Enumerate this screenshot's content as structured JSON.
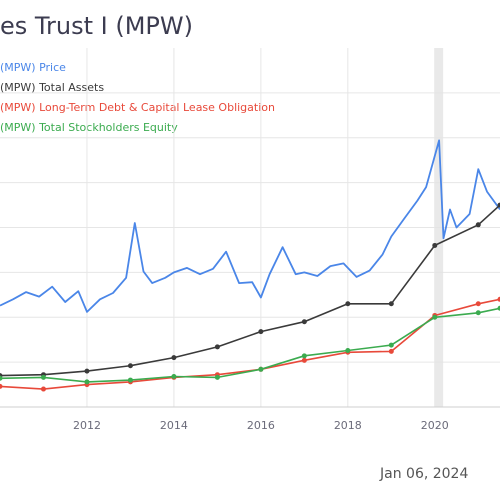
{
  "chart_data": {
    "type": "line",
    "title": "es Trust I (MPW)",
    "date_text": "Jan 06, 2024",
    "x_ticks": [
      "2012",
      "2014",
      "2016",
      "2018",
      "2020"
    ],
    "xlim": [
      2010,
      2021.5
    ],
    "ylim": [
      0,
      40
    ],
    "grid": true,
    "legend_position": "top-left",
    "highlight_band": 2020.1,
    "series": [
      {
        "name": "(MPW) Price",
        "color": "#4a86e8",
        "x": [
          2010.0,
          2010.3,
          2010.6,
          2010.9,
          2011.2,
          2011.5,
          2011.8,
          2012.0,
          2012.3,
          2012.6,
          2012.9,
          2013.1,
          2013.3,
          2013.5,
          2013.8,
          2014.0,
          2014.3,
          2014.6,
          2014.9,
          2015.2,
          2015.5,
          2015.8,
          2016.0,
          2016.2,
          2016.5,
          2016.8,
          2017.0,
          2017.3,
          2017.6,
          2017.9,
          2018.2,
          2018.5,
          2018.8,
          2019.0,
          2019.3,
          2019.6,
          2019.8,
          2020.1,
          2020.2,
          2020.35,
          2020.5,
          2020.8,
          2021.0,
          2021.2,
          2021.5
        ],
        "values": [
          11.3,
          12.0,
          12.8,
          12.3,
          13.4,
          11.7,
          12.9,
          10.6,
          12.0,
          12.7,
          14.4,
          20.5,
          15.1,
          13.8,
          14.4,
          15.0,
          15.5,
          14.8,
          15.4,
          17.3,
          13.8,
          13.9,
          12.2,
          14.8,
          17.8,
          14.8,
          15.0,
          14.6,
          15.7,
          16.0,
          14.5,
          15.2,
          17.0,
          19.0,
          21.0,
          23.0,
          24.5,
          29.7,
          18.8,
          22.0,
          20.0,
          21.5,
          26.5,
          24.0,
          22.0
        ]
      },
      {
        "name": "(MPW) Total Assets",
        "color": "#3a3a3a",
        "x": [
          2010.0,
          2011.0,
          2012.0,
          2013.0,
          2014.0,
          2015.0,
          2016.0,
          2017.0,
          2018.0,
          2019.0,
          2020.0,
          2021.0,
          2021.5
        ],
        "values": [
          3.5,
          3.6,
          4.0,
          4.6,
          5.5,
          6.7,
          8.4,
          9.5,
          11.5,
          11.5,
          18.0,
          20.3,
          22.5
        ]
      },
      {
        "name": "(MPW) Long-Term Debt & Capital Lease Obligation",
        "color": "#e8493a",
        "x": [
          2010.0,
          2011.0,
          2012.0,
          2013.0,
          2014.0,
          2015.0,
          2016.0,
          2017.0,
          2018.0,
          2019.0,
          2020.0,
          2021.0,
          2021.5
        ],
        "values": [
          2.3,
          2.0,
          2.5,
          2.8,
          3.3,
          3.6,
          4.2,
          5.2,
          6.1,
          6.2,
          10.2,
          11.5,
          12.0
        ]
      },
      {
        "name": "(MPW) Total Stockholders Equity",
        "color": "#3bab4f",
        "x": [
          2010.0,
          2011.0,
          2012.0,
          2013.0,
          2014.0,
          2015.0,
          2016.0,
          2017.0,
          2018.0,
          2019.0,
          2020.0,
          2021.0,
          2021.5
        ],
        "values": [
          3.2,
          3.3,
          2.8,
          3.0,
          3.4,
          3.3,
          4.2,
          5.7,
          6.3,
          6.9,
          10.0,
          10.5,
          11.0
        ]
      }
    ]
  }
}
